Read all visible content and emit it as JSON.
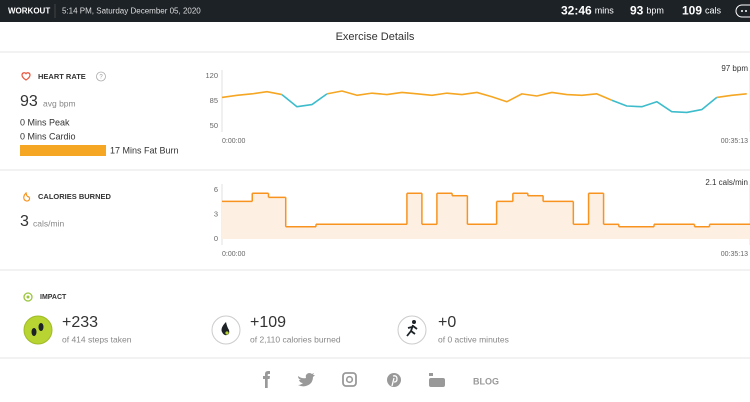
{
  "header": {
    "label": "WORKOUT",
    "datetime": "5:14 PM, Saturday December 05, 2020",
    "duration": "32:46",
    "duration_unit": "mins",
    "heart_rate": "93",
    "heart_rate_unit": "bpm",
    "calories": "109",
    "calories_unit": "cals"
  },
  "title": "Exercise Details",
  "heart_rate": {
    "title": "HEART RATE",
    "help": "?",
    "average": "93",
    "average_unit": "avg bpm",
    "zones": [
      "0 Mins Peak",
      "0 Mins Cardio",
      "17 Mins Fat Burn"
    ],
    "chart": {
      "type": "line",
      "current_label": "97 bpm",
      "x": [
        0,
        60,
        120,
        180,
        240,
        300,
        360,
        420,
        480,
        540,
        600,
        660,
        720,
        780,
        840,
        900,
        960,
        1020,
        1080,
        1140,
        1200,
        1260,
        1320,
        1380,
        1440,
        1500,
        1560,
        1620,
        1680,
        1740,
        1800,
        1860,
        1920,
        1980,
        2040,
        2100
      ],
      "xlim": [
        0,
        2113
      ],
      "xticks": [
        {
          "value": 0,
          "label": "0:00:00"
        },
        {
          "value": 2113,
          "label": "00:35:13"
        }
      ],
      "ylim": [
        50,
        120
      ],
      "yticks": [
        50,
        85,
        120
      ],
      "series": [
        {
          "color": "#f5a623",
          "values": [
            90,
            93,
            95,
            98,
            94,
            null,
            null,
            95,
            99,
            93,
            96,
            94,
            97,
            95,
            93,
            96,
            94,
            97,
            91,
            84,
            95,
            92,
            97,
            94,
            93,
            95,
            86,
            null,
            null,
            null,
            null,
            null,
            null,
            90,
            93,
            95
          ]
        },
        {
          "color": "#3dbccb",
          "values": [
            null,
            null,
            null,
            null,
            94,
            77,
            80,
            95,
            null,
            null,
            null,
            null,
            null,
            null,
            null,
            null,
            null,
            null,
            null,
            null,
            null,
            null,
            null,
            null,
            null,
            null,
            86,
            78,
            77,
            84,
            70,
            69,
            73,
            90,
            null,
            null
          ]
        }
      ]
    }
  },
  "calories": {
    "title": "CALORIES BURNED",
    "average": "3",
    "average_unit": "cals/min",
    "chart": {
      "type": "step",
      "current_label": "2.1 cals/min",
      "x": [
        0,
        121,
        186,
        255,
        376,
        740,
        800,
        860,
        921,
        982,
        1099,
        1164,
        1224,
        1285,
        1406,
        1467,
        1527,
        1588,
        1729,
        1891,
        1951
      ],
      "values": [
        4.6,
        5.6,
        5.1,
        1.5,
        1.8,
        5.6,
        1.8,
        5.6,
        5.3,
        1.8,
        4.6,
        5.6,
        5.3,
        4.6,
        1.8,
        5.6,
        1.8,
        1.5,
        1.8,
        1.5,
        1.8
      ],
      "color": "#f7931e",
      "xlim": [
        0,
        2113
      ],
      "xticks": [
        {
          "value": 0,
          "label": "0:00:00"
        },
        {
          "value": 2113,
          "label": "00:35:13"
        }
      ],
      "ylim": [
        0,
        6
      ],
      "yticks": [
        0,
        3,
        6
      ]
    }
  },
  "impact": {
    "title": "IMPACT",
    "items": [
      {
        "value": "+233",
        "detail": "of 414 steps taken"
      },
      {
        "value": "+109",
        "detail": "of 2,110 calories burned"
      },
      {
        "value": "+0",
        "detail": "of 0 active minutes"
      }
    ]
  },
  "footer": {
    "blog": "BLOG"
  }
}
